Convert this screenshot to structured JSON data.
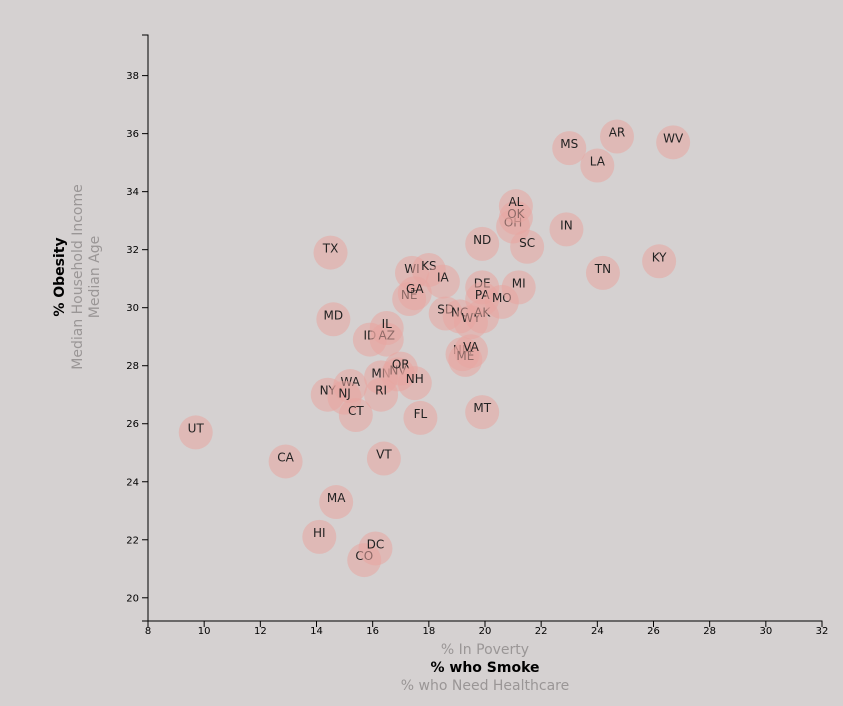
{
  "chart_data": {
    "type": "scatter",
    "x_axis": {
      "range": [
        8,
        32
      ],
      "ticks": [
        8,
        10,
        12,
        14,
        16,
        18,
        20,
        22,
        24,
        26,
        28,
        30,
        32
      ],
      "labels": [
        {
          "text": "% In Poverty",
          "active": false
        },
        {
          "text": "% who Smoke",
          "active": true
        },
        {
          "text": "% who Need Healthcare",
          "active": false
        }
      ]
    },
    "y_axis": {
      "range": [
        19.2,
        39.4
      ],
      "ticks": [
        20,
        22,
        24,
        26,
        28,
        30,
        32,
        34,
        36,
        38
      ],
      "labels": [
        {
          "text": "% Obesity",
          "active": true
        },
        {
          "text": "Median Household Income",
          "active": false
        },
        {
          "text": "Median Age",
          "active": false
        }
      ]
    },
    "colors": {
      "point": "#e8a6a0",
      "background": "#d5d1d1"
    },
    "points": [
      {
        "abbr": "UT",
        "x": 9.7,
        "y": 25.7
      },
      {
        "abbr": "CA",
        "x": 12.9,
        "y": 24.7
      },
      {
        "abbr": "TX",
        "x": 14.5,
        "y": 31.9
      },
      {
        "abbr": "MD",
        "x": 14.6,
        "y": 29.6
      },
      {
        "abbr": "NY",
        "x": 14.4,
        "y": 27.0
      },
      {
        "abbr": "MA",
        "x": 14.7,
        "y": 23.3
      },
      {
        "abbr": "HI",
        "x": 14.1,
        "y": 22.1
      },
      {
        "abbr": "WA",
        "x": 15.2,
        "y": 27.3
      },
      {
        "abbr": "NJ",
        "x": 15.0,
        "y": 26.9
      },
      {
        "abbr": "CT",
        "x": 15.4,
        "y": 26.3
      },
      {
        "abbr": "CO",
        "x": 15.7,
        "y": 21.3
      },
      {
        "abbr": "DC",
        "x": 16.1,
        "y": 21.7
      },
      {
        "abbr": "ID",
        "x": 15.9,
        "y": 28.9
      },
      {
        "abbr": "AZ",
        "x": 16.5,
        "y": 28.9
      },
      {
        "abbr": "IL",
        "x": 16.5,
        "y": 29.3
      },
      {
        "abbr": "MN",
        "x": 16.3,
        "y": 27.6
      },
      {
        "abbr": "RI",
        "x": 16.3,
        "y": 27.0
      },
      {
        "abbr": "VT",
        "x": 16.4,
        "y": 24.8
      },
      {
        "abbr": "NV",
        "x": 16.9,
        "y": 27.7
      },
      {
        "abbr": "OR",
        "x": 17.0,
        "y": 27.9
      },
      {
        "abbr": "NH",
        "x": 17.5,
        "y": 27.4
      },
      {
        "abbr": "FL",
        "x": 17.7,
        "y": 26.2
      },
      {
        "abbr": "WI",
        "x": 17.4,
        "y": 31.2
      },
      {
        "abbr": "NE",
        "x": 17.3,
        "y": 30.3
      },
      {
        "abbr": "GA",
        "x": 17.5,
        "y": 30.5
      },
      {
        "abbr": "KS",
        "x": 18.0,
        "y": 31.3
      },
      {
        "abbr": "IA",
        "x": 18.5,
        "y": 30.9
      },
      {
        "abbr": "SD",
        "x": 18.6,
        "y": 29.8
      },
      {
        "abbr": "NC",
        "x": 19.1,
        "y": 29.7
      },
      {
        "abbr": "WY",
        "x": 19.5,
        "y": 29.5
      },
      {
        "abbr": "AK",
        "x": 19.9,
        "y": 29.7
      },
      {
        "abbr": "NM",
        "x": 19.2,
        "y": 28.4
      },
      {
        "abbr": "ME",
        "x": 19.3,
        "y": 28.2
      },
      {
        "abbr": "VA",
        "x": 19.5,
        "y": 28.5
      },
      {
        "abbr": "MT",
        "x": 19.9,
        "y": 26.4
      },
      {
        "abbr": "ND",
        "x": 19.9,
        "y": 32.2
      },
      {
        "abbr": "DE",
        "x": 19.9,
        "y": 30.7
      },
      {
        "abbr": "PA",
        "x": 19.9,
        "y": 30.3
      },
      {
        "abbr": "MO",
        "x": 20.6,
        "y": 30.2
      },
      {
        "abbr": "MI",
        "x": 21.2,
        "y": 30.7
      },
      {
        "abbr": "OH",
        "x": 21.0,
        "y": 32.8
      },
      {
        "abbr": "OK",
        "x": 21.1,
        "y": 33.1
      },
      {
        "abbr": "AL",
        "x": 21.1,
        "y": 33.5
      },
      {
        "abbr": "SC",
        "x": 21.5,
        "y": 32.1
      },
      {
        "abbr": "IN",
        "x": 22.9,
        "y": 32.7
      },
      {
        "abbr": "TN",
        "x": 24.2,
        "y": 31.2
      },
      {
        "abbr": "LA",
        "x": 24.0,
        "y": 34.9
      },
      {
        "abbr": "MS",
        "x": 23.0,
        "y": 35.5
      },
      {
        "abbr": "AR",
        "x": 24.7,
        "y": 35.9
      },
      {
        "abbr": "KY",
        "x": 26.2,
        "y": 31.6
      },
      {
        "abbr": "WV",
        "x": 26.7,
        "y": 35.7
      }
    ]
  }
}
